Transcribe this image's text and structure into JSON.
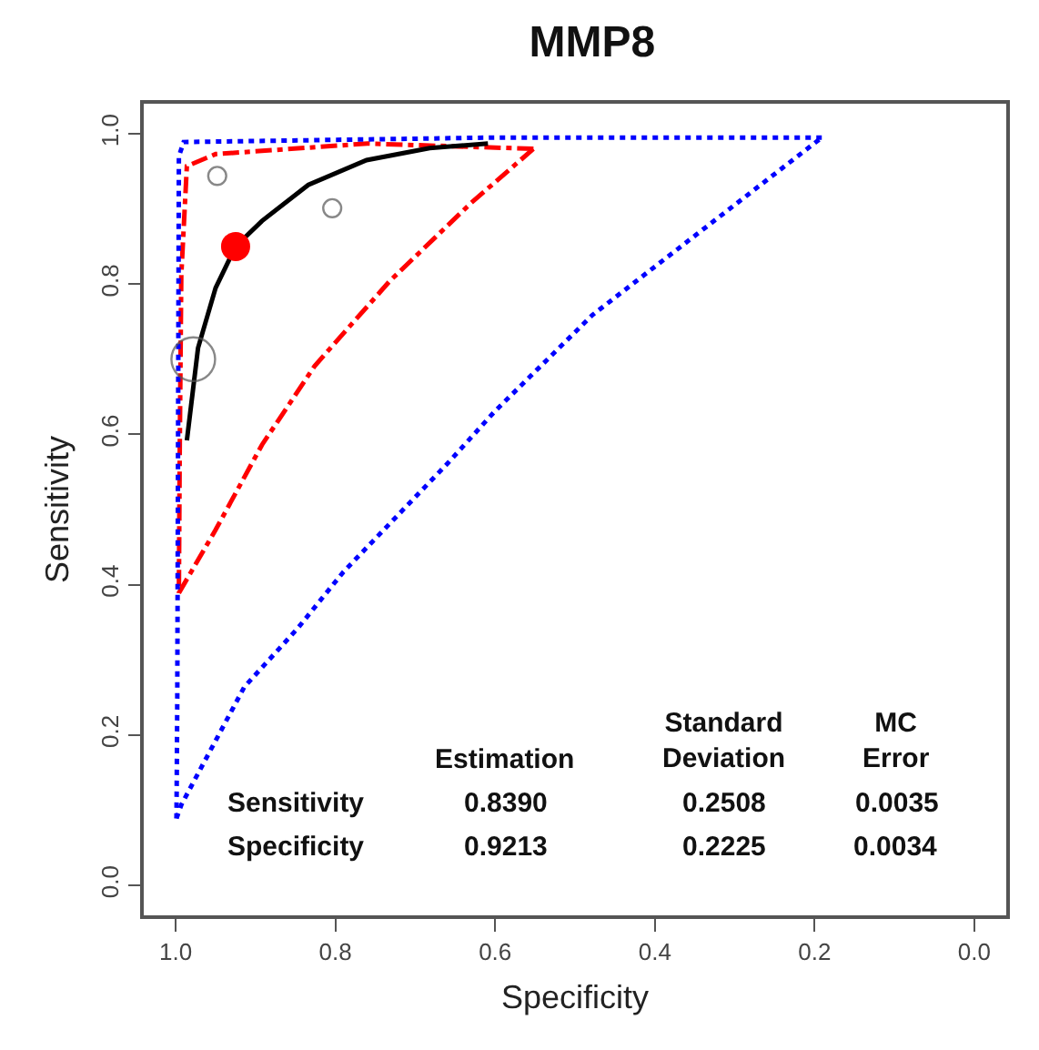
{
  "chart_data": {
    "type": "line",
    "title": "MMP8",
    "xlabel": "Specificity",
    "ylabel": "Sensitivity",
    "xlim": [
      1.04,
      -0.04
    ],
    "ylim": [
      -0.04,
      1.04
    ],
    "xticks": [
      {
        "value": 1,
        "label": "1.0"
      },
      0.8,
      0.6,
      0.4,
      0.2,
      {
        "value": 0,
        "label": "0.0"
      }
    ],
    "yticks": [
      {
        "value": 0,
        "label": "0.0"
      },
      0.2,
      0.4,
      0.6,
      0.8,
      {
        "value": 1,
        "label": "1.0"
      }
    ],
    "grid": false,
    "series": [
      {
        "color": "#ff0000",
        "line_style": "dashed",
        "marker": "none",
        "x": [
          0.996,
          0.95,
          0.892,
          0.826,
          0.732,
          0.63,
          0.552
        ],
        "values": [
          0.389,
          0.473,
          0.586,
          0.691,
          0.804,
          0.908,
          0.98
        ]
      },
      {
        "color": "#ff0000",
        "line_style": "dashed",
        "marker": "none",
        "x": [
          0.552,
          0.76,
          0.95,
          0.986,
          0.993,
          0.995,
          0.996
        ],
        "values": [
          0.98,
          0.987,
          0.973,
          0.957,
          0.812,
          0.57,
          0.389
        ]
      },
      {
        "color": "#0000ff",
        "line_style": "dotted",
        "marker": "none",
        "x": [
          0.999,
          0.993,
          0.914,
          0.848,
          0.79,
          0.659,
          0.601,
          0.478,
          0.191
        ],
        "values": [
          0.089,
          0.107,
          0.264,
          0.341,
          0.417,
          0.562,
          0.63,
          0.759,
          0.995
        ]
      },
      {
        "color": "#0000ff",
        "line_style": "dotted",
        "marker": "none",
        "x": [
          0.191,
          0.6,
          0.99,
          0.996,
          0.997,
          0.998,
          0.999
        ],
        "values": [
          0.995,
          0.995,
          0.989,
          0.97,
          0.6,
          0.249,
          0.089
        ]
      },
      {
        "color": "#000000",
        "line_style": "solid",
        "marker": "none",
        "x": [
          0.986,
          0.972,
          0.95,
          0.925,
          0.892,
          0.834,
          0.761,
          0.682,
          0.609
        ],
        "values": [
          0.592,
          0.715,
          0.795,
          0.85,
          0.884,
          0.932,
          0.965,
          0.981,
          0.987
        ]
      },
      {
        "type": "bubble",
        "color": "#555555",
        "marker": "circle",
        "x": [
          0.948,
          0.804,
          0.978
        ],
        "values": [
          0.944,
          0.901,
          0.7
        ],
        "sizes": [
          0.17,
          0.17,
          1
        ]
      },
      {
        "type": "scatter",
        "color": "#ff0000",
        "marker": "circle",
        "x": [
          0.925
        ],
        "values": [
          0.85
        ]
      }
    ],
    "annotations": [
      "Estimation",
      "Standard\nDeviation",
      "MC\nError",
      "Sensitivity",
      "0.8390",
      "0.2508",
      "0.0035",
      "Specificity",
      "0.9213",
      "0.2225",
      "0.0034"
    ]
  }
}
